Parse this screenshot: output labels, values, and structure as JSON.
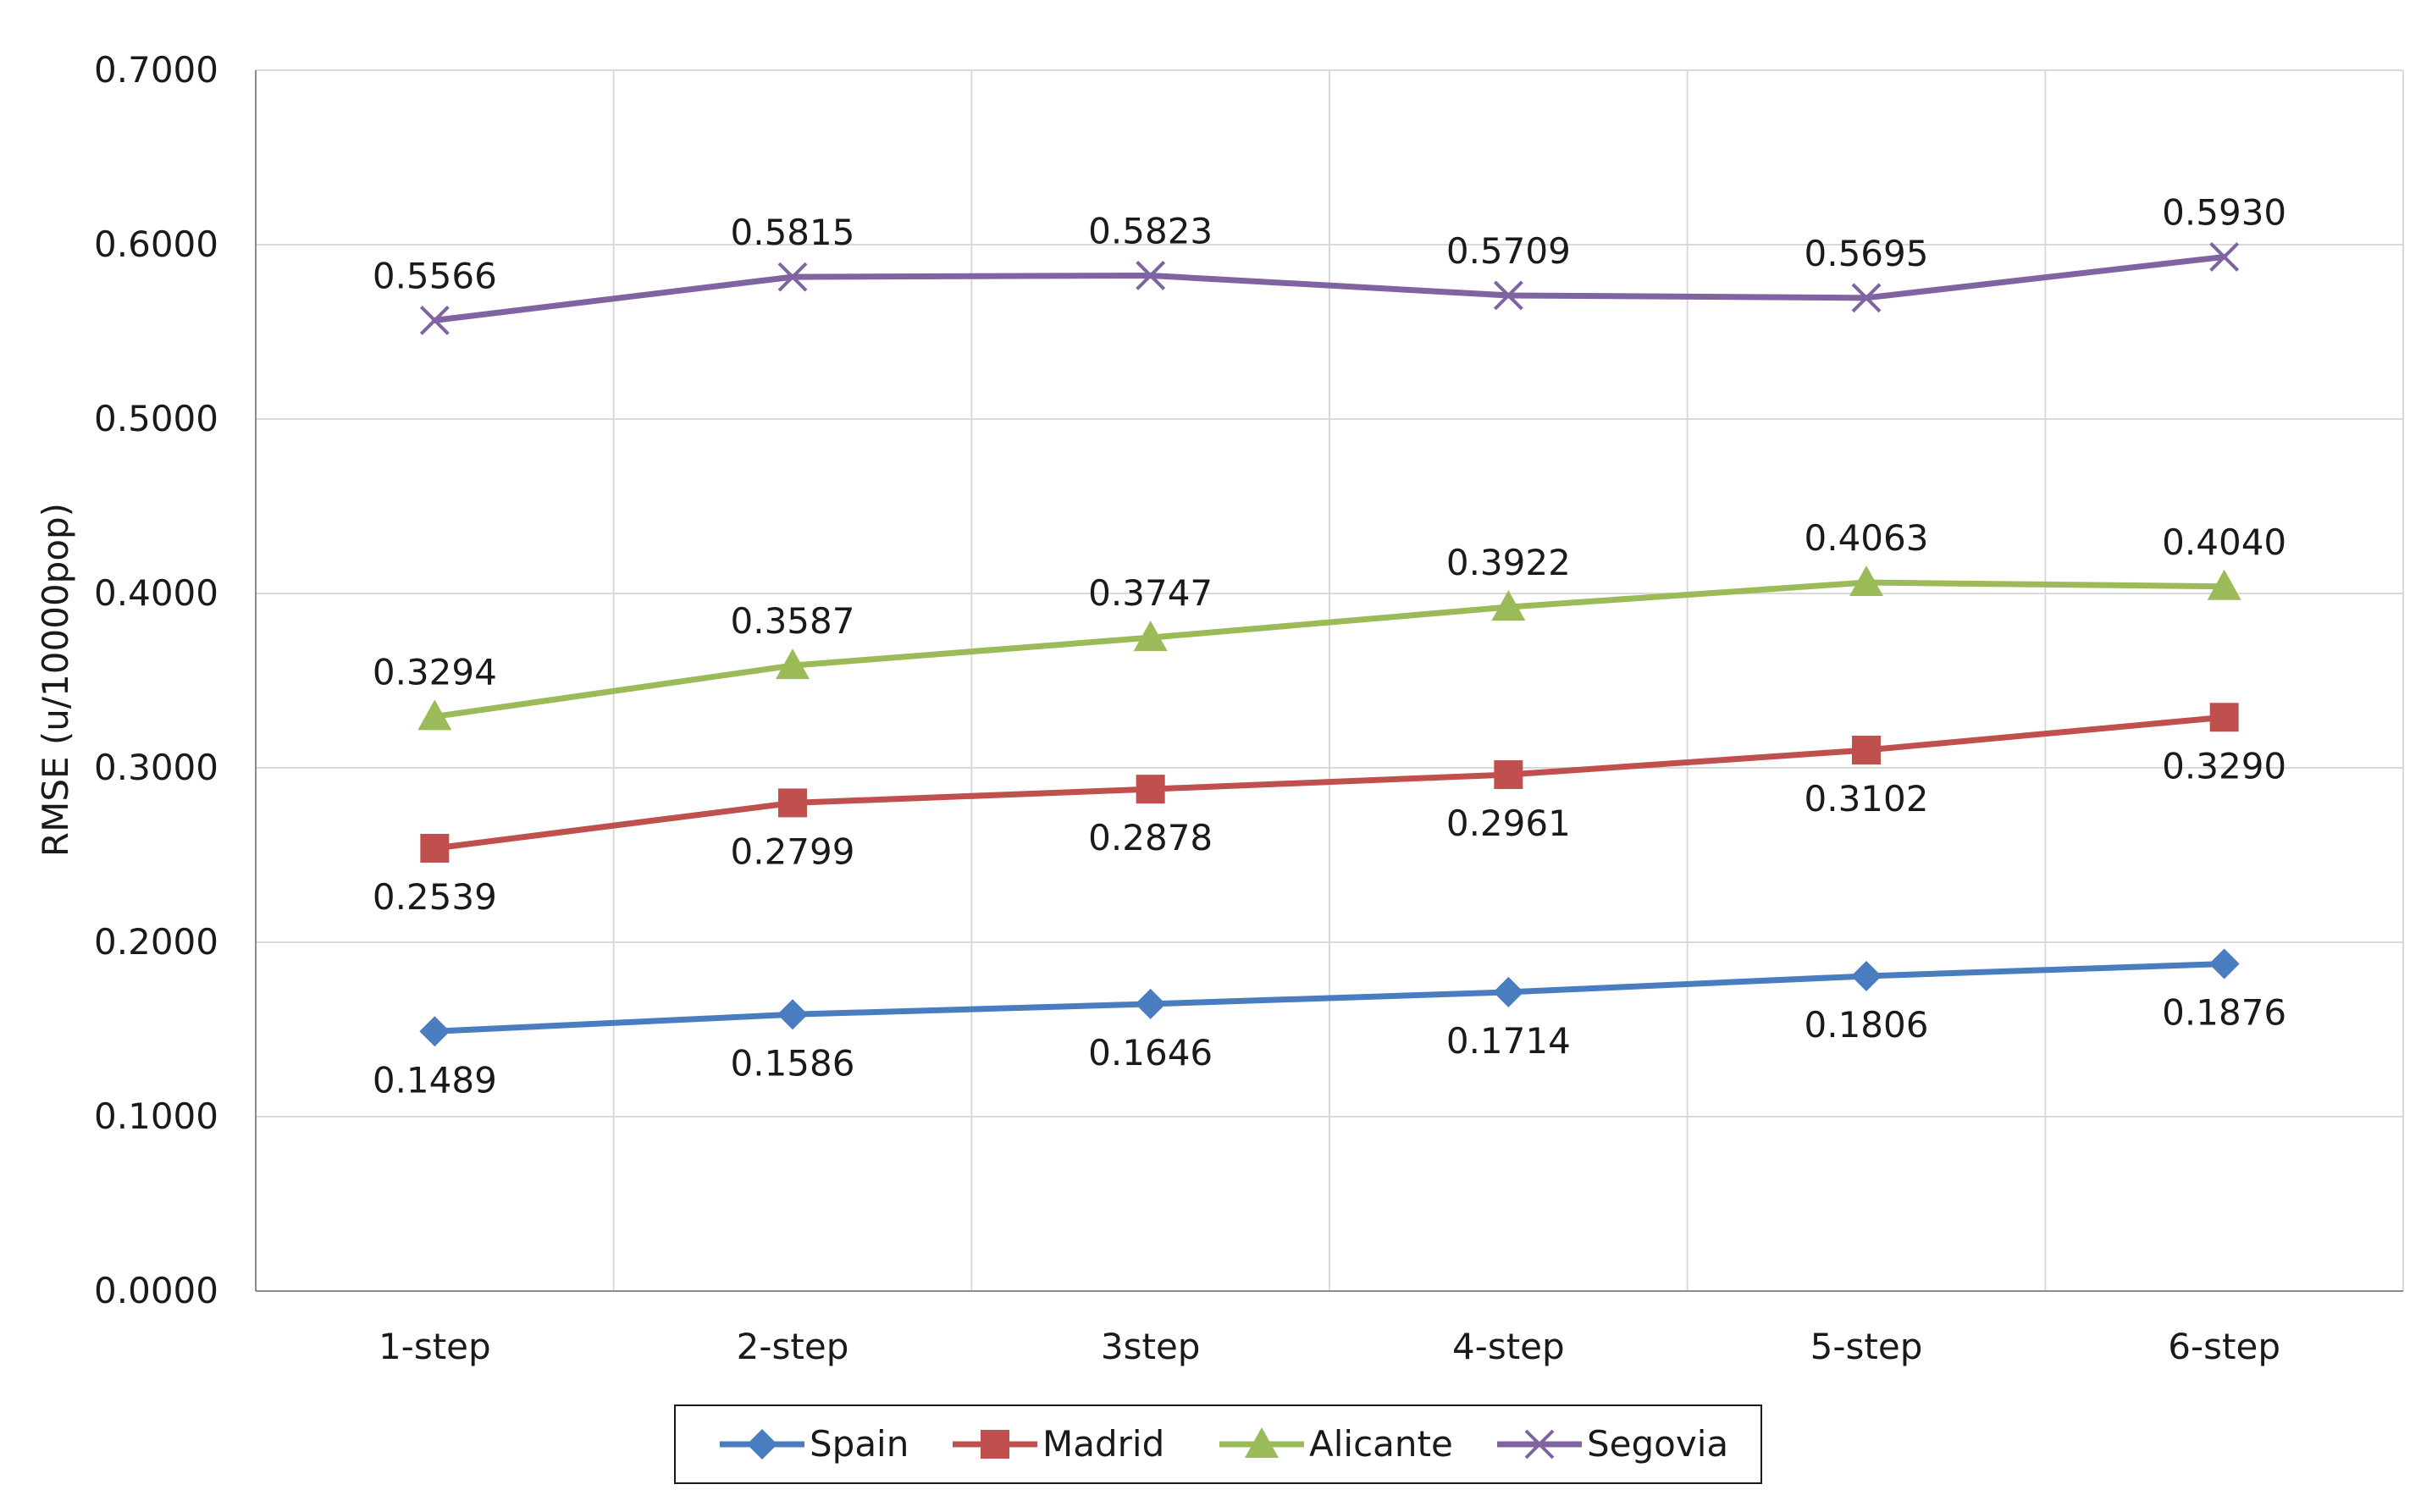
{
  "chart_data": {
    "type": "line",
    "title": "",
    "xlabel": "",
    "ylabel": "RMSE (u/10000pop)",
    "ylim": [
      0,
      0.7
    ],
    "ytick_values": [
      0,
      0.1,
      0.2,
      0.3,
      0.4,
      0.5,
      0.6,
      0.7
    ],
    "ytick_labels": [
      "0.0000",
      "0.1000",
      "0.2000",
      "0.3000",
      "0.4000",
      "0.5000",
      "0.6000",
      "0.7000"
    ],
    "categories": [
      "1-step",
      "2-step",
      "3step",
      "4-step",
      "5-step",
      "6-step"
    ],
    "grid": true,
    "legend_position": "bottom",
    "series": [
      {
        "name": "Spain",
        "color": "#4a7dbf",
        "marker": "diamond",
        "label_position": "below",
        "values": [
          0.1489,
          0.1586,
          0.1646,
          0.1714,
          0.1806,
          0.1876
        ],
        "labels": [
          "0.1489",
          "0.1586",
          "0.1646",
          "0.1714",
          "0.1806",
          "0.1876"
        ]
      },
      {
        "name": "Madrid",
        "color": "#c0504d",
        "marker": "square",
        "label_position": "below",
        "values": [
          0.2539,
          0.2799,
          0.2878,
          0.2961,
          0.3102,
          0.329
        ],
        "labels": [
          "0.2539",
          "0.2799",
          "0.2878",
          "0.2961",
          "0.3102",
          "0.3290"
        ]
      },
      {
        "name": "Alicante",
        "color": "#9bbb59",
        "marker": "triangle",
        "label_position": "above",
        "values": [
          0.3294,
          0.3587,
          0.3747,
          0.3922,
          0.4063,
          0.404
        ],
        "labels": [
          "0.3294",
          "0.3587",
          "0.3747",
          "0.3922",
          "0.4063",
          "0.4040"
        ]
      },
      {
        "name": "Segovia",
        "color": "#8064a2",
        "marker": "x",
        "label_position": "above",
        "values": [
          0.5566,
          0.5815,
          0.5823,
          0.5709,
          0.5695,
          0.593
        ],
        "labels": [
          "0.5566",
          "0.5815",
          "0.5823",
          "0.5709",
          "0.5695",
          "0.5930"
        ]
      }
    ]
  }
}
